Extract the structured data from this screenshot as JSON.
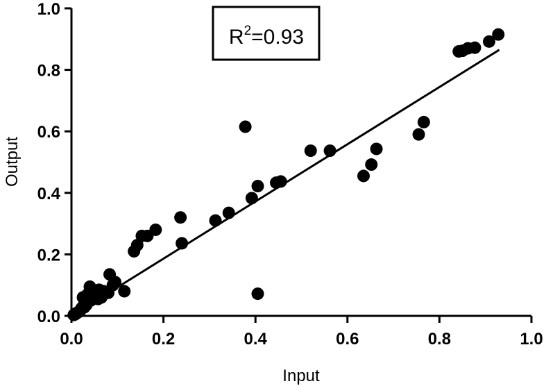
{
  "chart_data": {
    "type": "scatter",
    "xlabel": "Input",
    "ylabel": "Output",
    "xlim": [
      0,
      1.0
    ],
    "ylim": [
      0,
      1.0
    ],
    "x_ticks": [
      "0.0",
      "0.2",
      "0.4",
      "0.6",
      "0.8",
      "1.0"
    ],
    "y_ticks": [
      "0.0",
      "0.2",
      "0.4",
      "0.6",
      "0.8",
      "1.0"
    ],
    "grid": false,
    "annotation": {
      "prefix": "R",
      "superscript": "2",
      "suffix": "=0.93"
    },
    "colors": {
      "points": "#000000",
      "fit_line": "#000000"
    },
    "fit_line": {
      "x": [
        0.0,
        0.93
      ],
      "y": [
        0.0,
        0.865
      ]
    },
    "series": [
      {
        "points": [
          [
            0.005,
            0.003
          ],
          [
            0.008,
            0.005
          ],
          [
            0.01,
            0.008
          ],
          [
            0.012,
            0.01
          ],
          [
            0.015,
            0.012
          ],
          [
            0.018,
            0.015
          ],
          [
            0.02,
            0.02
          ],
          [
            0.022,
            0.025
          ],
          [
            0.025,
            0.03
          ],
          [
            0.028,
            0.028
          ],
          [
            0.03,
            0.04
          ],
          [
            0.032,
            0.035
          ],
          [
            0.035,
            0.045
          ],
          [
            0.038,
            0.055
          ],
          [
            0.04,
            0.06
          ],
          [
            0.042,
            0.05
          ],
          [
            0.045,
            0.08
          ],
          [
            0.048,
            0.07
          ],
          [
            0.05,
            0.065
          ],
          [
            0.055,
            0.075
          ],
          [
            0.058,
            0.055
          ],
          [
            0.06,
            0.085
          ],
          [
            0.065,
            0.06
          ],
          [
            0.07,
            0.08
          ],
          [
            0.08,
            0.075
          ],
          [
            0.083,
            0.135
          ],
          [
            0.09,
            0.1
          ],
          [
            0.095,
            0.11
          ],
          [
            0.115,
            0.08
          ],
          [
            0.04,
            0.095
          ],
          [
            0.025,
            0.06
          ],
          [
            0.035,
            0.07
          ],
          [
            0.136,
            0.21
          ],
          [
            0.143,
            0.23
          ],
          [
            0.153,
            0.26
          ],
          [
            0.165,
            0.26
          ],
          [
            0.183,
            0.28
          ],
          [
            0.237,
            0.32
          ],
          [
            0.24,
            0.236
          ],
          [
            0.313,
            0.31
          ],
          [
            0.342,
            0.335
          ],
          [
            0.378,
            0.615
          ],
          [
            0.392,
            0.383
          ],
          [
            0.405,
            0.422
          ],
          [
            0.405,
            0.072
          ],
          [
            0.445,
            0.433
          ],
          [
            0.455,
            0.437
          ],
          [
            0.52,
            0.537
          ],
          [
            0.562,
            0.537
          ],
          [
            0.635,
            0.455
          ],
          [
            0.652,
            0.492
          ],
          [
            0.663,
            0.543
          ],
          [
            0.755,
            0.59
          ],
          [
            0.766,
            0.63
          ],
          [
            0.842,
            0.86
          ],
          [
            0.85,
            0.862
          ],
          [
            0.862,
            0.87
          ],
          [
            0.877,
            0.872
          ],
          [
            0.908,
            0.892
          ],
          [
            0.928,
            0.915
          ]
        ]
      }
    ]
  }
}
